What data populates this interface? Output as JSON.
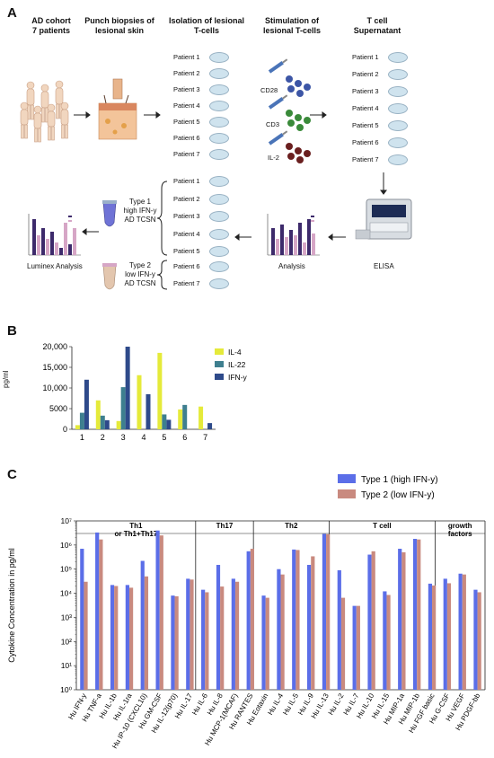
{
  "panel_a": {
    "letter": "A",
    "headers": {
      "cohort": [
        "AD cohort",
        "7 patients"
      ],
      "biopsy": [
        "Punch biopsies of",
        "lesional skin"
      ],
      "isolation": [
        "Isolation of lesional",
        "T-cells"
      ],
      "stimulation": [
        "Stimulation of",
        "lesional T-cells"
      ],
      "supernatant": [
        "T cell",
        "Supernatant"
      ]
    },
    "patients": [
      "Patient 1",
      "Patient 2",
      "Patient 3",
      "Patient 4",
      "Patient 5",
      "Patient 6",
      "Patient 7"
    ],
    "stimuli": [
      "CD28",
      "CD3",
      "IL-2"
    ],
    "type1_label": [
      "Type 1",
      "high IFN-y",
      "AD TCSN"
    ],
    "type2_label": [
      "Type 2",
      "low IFN-y",
      "AD TCSN"
    ],
    "luminex_label": "Luminex Analysis",
    "analysis_label": "Analysis",
    "elisa_label": "ELISA",
    "colors": {
      "dish": "#cfe3ee",
      "bar_dark": "#3d2a6b",
      "bar_light": "#d6a6c6"
    }
  },
  "panel_b": {
    "letter": "B",
    "chart_data": {
      "type": "bar",
      "categories": [
        "1",
        "2",
        "3",
        "4",
        "5",
        "6",
        "7"
      ],
      "ylabel": "pg/ml",
      "ylim": [
        0,
        20000
      ],
      "yticks": [
        "0",
        "5000",
        "10,000",
        "15,000",
        "20,000"
      ],
      "series": [
        {
          "name": "IL-4",
          "color": "#e5ea3a",
          "values": [
            1000,
            7000,
            2000,
            13100,
            18500,
            4800,
            5500
          ]
        },
        {
          "name": "IL-22",
          "color": "#3e7f8f",
          "values": [
            4000,
            3300,
            10200,
            0,
            3600,
            5900,
            0
          ]
        },
        {
          "name": "IFN-y",
          "color": "#2e4a8a",
          "values": [
            12000,
            2200,
            20000,
            8500,
            2300,
            0,
            1500
          ]
        }
      ]
    }
  },
  "panel_c": {
    "letter": "C",
    "chart_data": {
      "type": "bar",
      "ylabel": "Cytokine Concentration in pg/ml",
      "yscale": "log",
      "ylim": [
        1,
        10000000
      ],
      "ytick_labels": [
        "10⁰",
        "10¹",
        "10²",
        "10³",
        "10⁴",
        "10⁵",
        "10⁶",
        "10⁷"
      ],
      "legend": [
        {
          "name": "Type 1 (high IFN-y)",
          "color": "#5b6ee8"
        },
        {
          "name": "Type 2 (low IFN-y)",
          "color": "#c98a7f"
        }
      ],
      "groups": [
        {
          "label": [
            "Th1",
            "or Th1+Th17"
          ],
          "start": 0,
          "end": 8
        },
        {
          "label": [
            "Th17"
          ],
          "start": 8,
          "end": 12
        },
        {
          "label": [
            "Th2"
          ],
          "start": 12,
          "end": 17
        },
        {
          "label": [
            "T cell"
          ],
          "start": 17,
          "end": 24
        },
        {
          "label": [
            "growth",
            "factors"
          ],
          "start": 24,
          "end": 28
        }
      ],
      "categories": [
        "Hu IFN-y",
        "Hu TNF-a",
        "Hu IL-1b",
        "Hu IL-1ra",
        "Hu IP-10 (CXCL10)",
        "Hu GM-CSF",
        "Hu IL-12(p70)",
        "Hu IL-17",
        "Hu IL-6",
        "Hu IL-8",
        "Hu MCP-1(MCAF)",
        "Hu RANTES",
        "Hu Eotaxin",
        "Hu IL-4",
        "Hu IL-5",
        "Hu IL-9",
        "Hu IL-13",
        "Hu IL-2",
        "Hu IL-7",
        "Hu IL-10",
        "Hu IL-15",
        "Hu MIP-1a",
        "Hu MIP-1b",
        "Hu FGF basic",
        "Hu G-CSF",
        "Hu VEGF",
        "Hu PDGF-bb"
      ],
      "series": [
        {
          "name": "Type 1 (high IFN-y)",
          "values": [
            700000,
            3300000,
            22000,
            22000,
            220000,
            4000000,
            8000,
            40000,
            14000,
            150000,
            40000,
            550000,
            8000,
            100000,
            650000,
            150000,
            2900000,
            90000,
            3000,
            400000,
            12000,
            700000,
            1800000,
            25000,
            40000,
            65000,
            14000
          ]
        },
        {
          "name": "Type 2 (low IFN-y)",
          "values": [
            30000,
            1700000,
            20000,
            17000,
            50000,
            2500000,
            7500,
            37000,
            11000,
            19000,
            30000,
            700000,
            6500,
            60000,
            620000,
            340000,
            2800000,
            6500,
            3000,
            550000,
            8500,
            500000,
            1700000,
            21000,
            26000,
            60000,
            11000
          ]
        }
      ]
    }
  }
}
